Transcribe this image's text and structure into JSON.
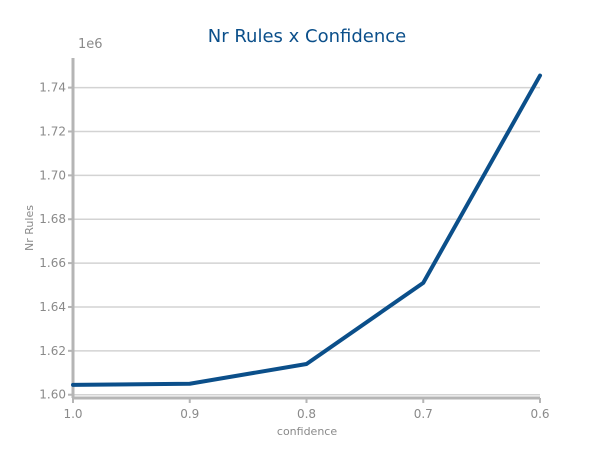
{
  "chart_data": {
    "type": "line",
    "title": "Nr Rules x Confidence",
    "xlabel": "confidence",
    "ylabel": "Nr Rules",
    "y_offset_label": "1e6",
    "x_reversed": true,
    "xlim": [
      1.0,
      0.6
    ],
    "ylim": [
      1.5985,
      1.7535
    ],
    "x_ticks": [
      1.0,
      0.9,
      0.8,
      0.7,
      0.6
    ],
    "x_tick_labels": [
      "1.0",
      "0.9",
      "0.8",
      "0.7",
      "0.6"
    ],
    "y_ticks": [
      1.6,
      1.62,
      1.64,
      1.66,
      1.68,
      1.7,
      1.72,
      1.74
    ],
    "y_tick_labels": [
      "1.60",
      "1.62",
      "1.64",
      "1.66",
      "1.68",
      "1.70",
      "1.72",
      "1.74"
    ],
    "grid": "horizontal",
    "series": [
      {
        "color": "#0b4f8a",
        "x": [
          1.0,
          0.9,
          0.8,
          0.7,
          0.6
        ],
        "y": [
          1.6045,
          1.605,
          1.614,
          1.651,
          1.7455
        ]
      }
    ]
  }
}
